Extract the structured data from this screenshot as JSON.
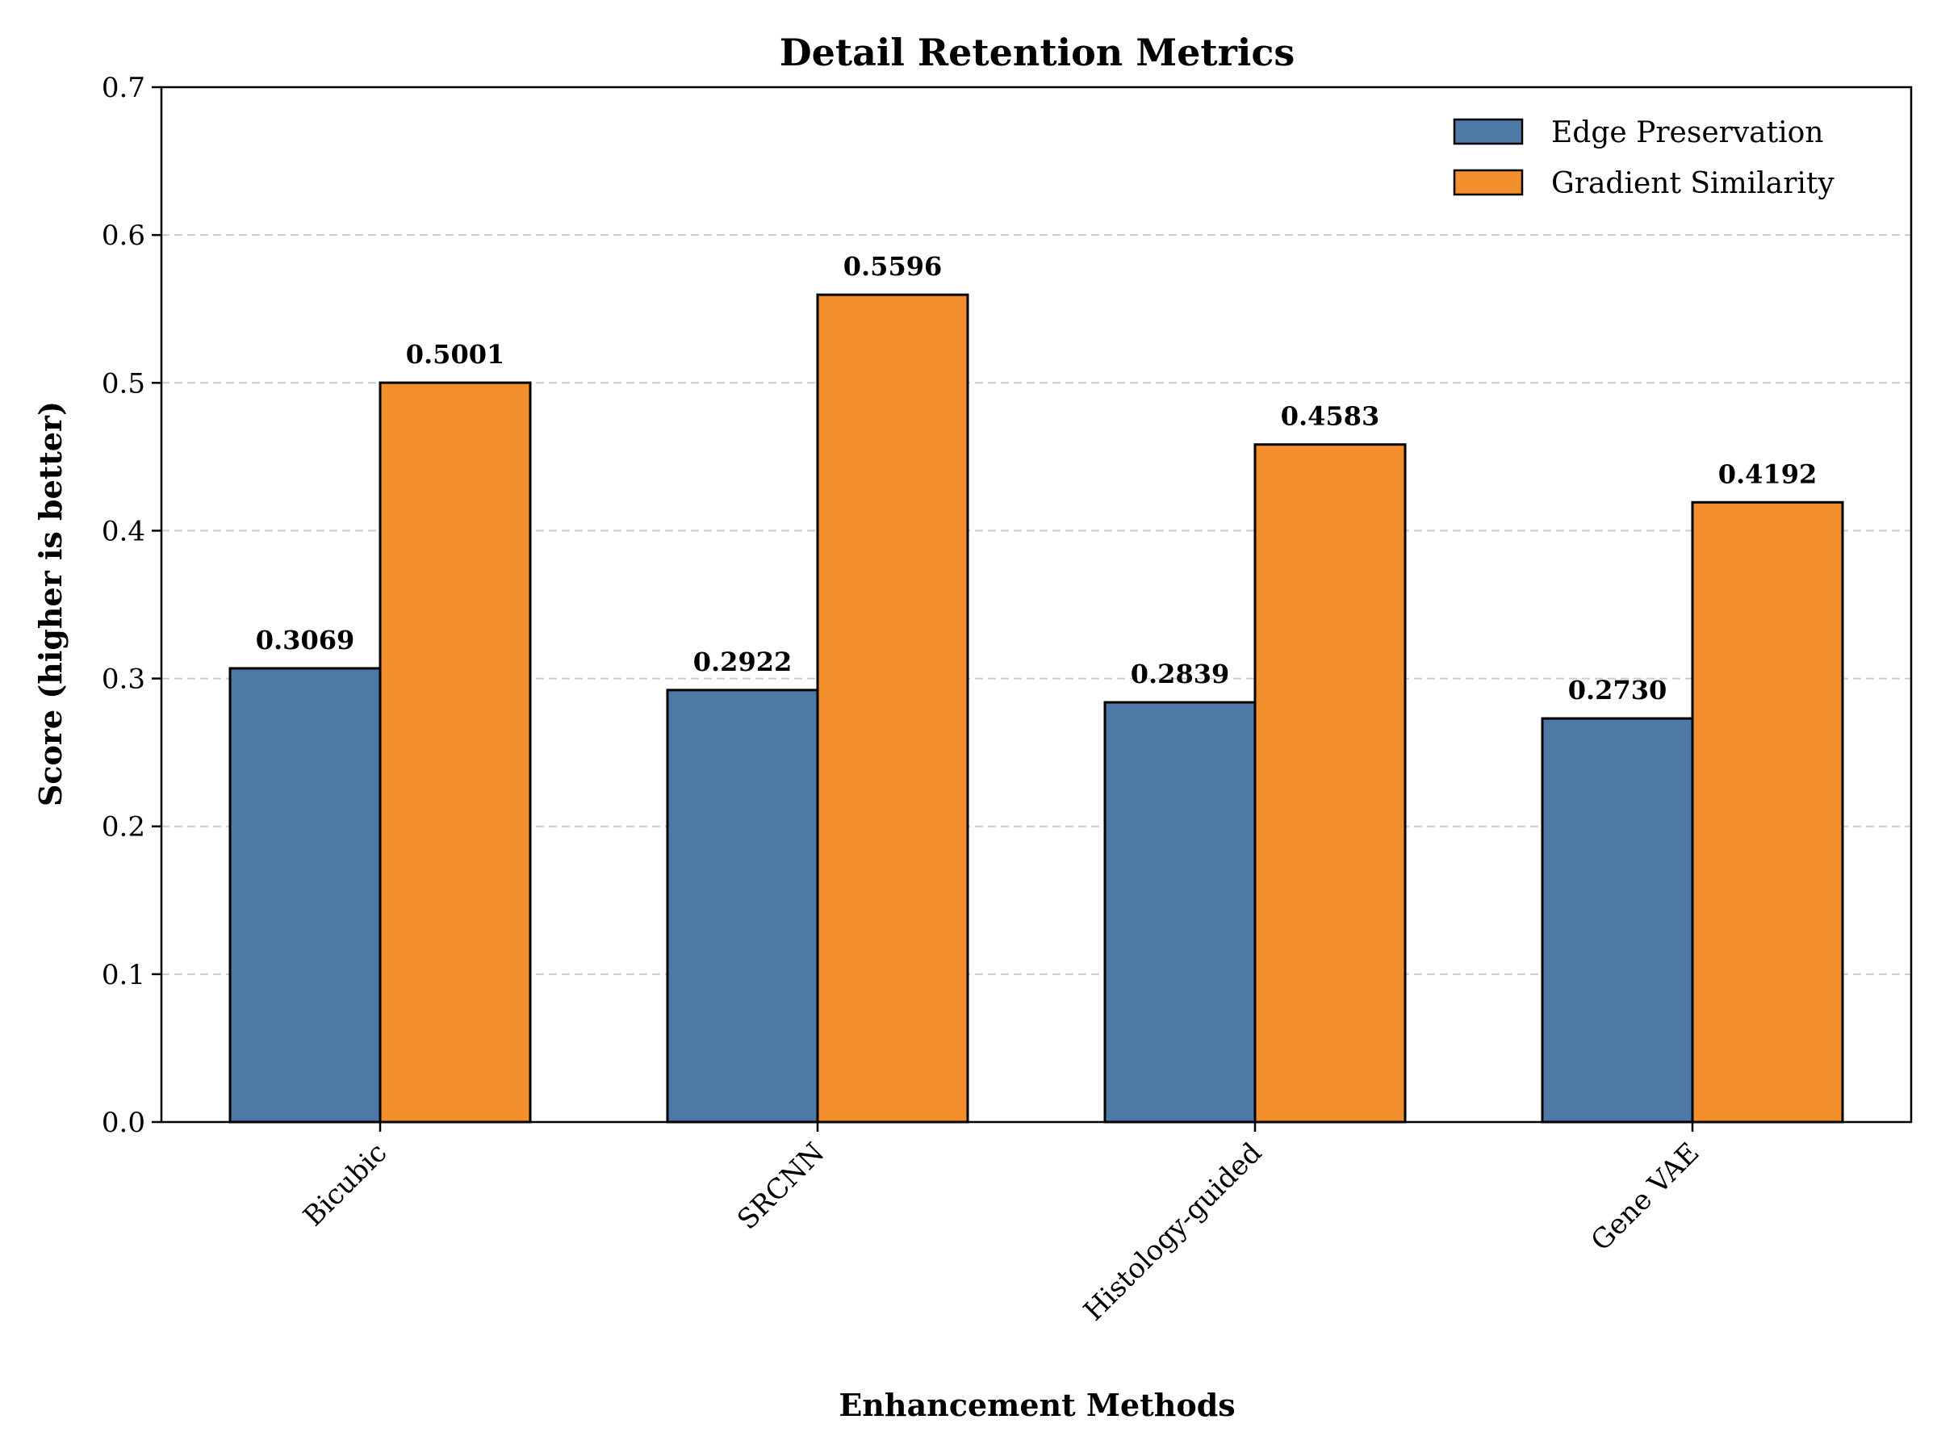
{
  "chart_data": {
    "type": "bar",
    "title": "Detail Retention Metrics",
    "xlabel": "Enhancement Methods",
    "ylabel": "Score (higher is better)",
    "categories": [
      "Bicubic",
      "SRCNN",
      "Histology-guided",
      "Gene VAE"
    ],
    "series": [
      {
        "name": "Edge Preservation",
        "color": "#4e79a7",
        "values": [
          0.3069,
          0.2922,
          0.2839,
          0.273
        ],
        "value_labels": [
          "0.3069",
          "0.2922",
          "0.2839",
          "0.2730"
        ]
      },
      {
        "name": "Gradient Similarity",
        "color": "#f28e2b",
        "values": [
          0.5001,
          0.5596,
          0.4583,
          0.4192
        ],
        "value_labels": [
          "0.5001",
          "0.5596",
          "0.4583",
          "0.4192"
        ]
      }
    ],
    "ylim": [
      0,
      0.7
    ],
    "yticks": [
      "0.0",
      "0.1",
      "0.2",
      "0.3",
      "0.4",
      "0.5",
      "0.6",
      "0.7"
    ],
    "grid": "y, dashed",
    "legend_position": "top-right"
  }
}
